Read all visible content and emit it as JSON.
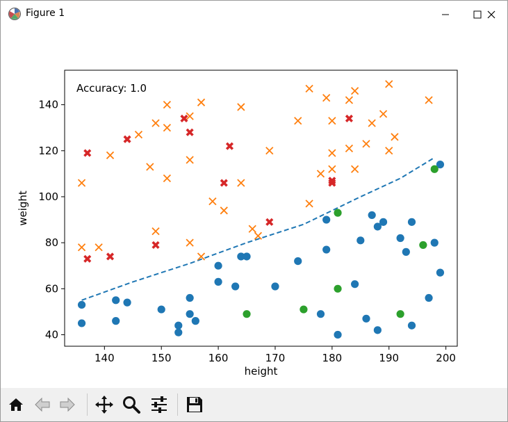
{
  "window": {
    "title": "Figure 1"
  },
  "toolbar": {
    "buttons": [
      {
        "name": "home-button",
        "icon": "home-icon"
      },
      {
        "name": "back-button",
        "icon": "arrow-left-icon"
      },
      {
        "name": "forward-button",
        "icon": "arrow-right-icon"
      },
      {
        "name": "pan-button",
        "icon": "move-icon"
      },
      {
        "name": "zoom-button",
        "icon": "magnifier-icon"
      },
      {
        "name": "configure-subplots-button",
        "icon": "sliders-icon"
      },
      {
        "name": "save-button",
        "icon": "floppy-disk-icon"
      }
    ]
  },
  "chart_data": {
    "type": "scatter",
    "xlabel": "height",
    "ylabel": "weight",
    "annotation": "Accuracy: 1.0",
    "xlim": [
      133,
      202
    ],
    "ylim": [
      35,
      155
    ],
    "xticks": [
      140,
      150,
      160,
      170,
      180,
      190,
      200
    ],
    "yticks": [
      40,
      60,
      80,
      100,
      120,
      140
    ],
    "grid": false,
    "colors": {
      "blue": "#1f77b4",
      "orange": "#ff7f0e",
      "green": "#2ca02c",
      "red": "#d62728"
    },
    "series": [
      {
        "marker": "circle",
        "color": "#1f77b4",
        "points": [
          [
            136,
            53
          ],
          [
            136,
            45
          ],
          [
            142,
            55
          ],
          [
            142,
            46
          ],
          [
            144,
            54
          ],
          [
            150,
            51
          ],
          [
            153,
            44
          ],
          [
            153,
            41
          ],
          [
            155,
            56
          ],
          [
            155,
            49
          ],
          [
            156,
            46
          ],
          [
            160,
            70
          ],
          [
            160,
            63
          ],
          [
            163,
            61
          ],
          [
            164,
            74
          ],
          [
            165,
            74
          ],
          [
            170,
            61
          ],
          [
            174,
            72
          ],
          [
            178,
            49
          ],
          [
            179,
            90
          ],
          [
            179,
            77
          ],
          [
            181,
            40
          ],
          [
            184,
            62
          ],
          [
            185,
            81
          ],
          [
            186,
            47
          ],
          [
            187,
            92
          ],
          [
            188,
            87
          ],
          [
            188,
            42
          ],
          [
            189,
            89
          ],
          [
            192,
            82
          ],
          [
            193,
            76
          ],
          [
            194,
            89
          ],
          [
            194,
            44
          ],
          [
            197,
            56
          ],
          [
            198,
            80
          ],
          [
            199,
            114
          ],
          [
            199,
            67
          ]
        ]
      },
      {
        "marker": "x",
        "color": "#ff7f0e",
        "points": [
          [
            136,
            106
          ],
          [
            136,
            78
          ],
          [
            139,
            78
          ],
          [
            141,
            118
          ],
          [
            146,
            127
          ],
          [
            148,
            113
          ],
          [
            149,
            132
          ],
          [
            149,
            85
          ],
          [
            151,
            140
          ],
          [
            151,
            130
          ],
          [
            151,
            108
          ],
          [
            155,
            135
          ],
          [
            155,
            116
          ],
          [
            155,
            80
          ],
          [
            157,
            141
          ],
          [
            157,
            74
          ],
          [
            159,
            98
          ],
          [
            161,
            94
          ],
          [
            164,
            139
          ],
          [
            164,
            106
          ],
          [
            166,
            86
          ],
          [
            167,
            83
          ],
          [
            169,
            120
          ],
          [
            174,
            133
          ],
          [
            176,
            147
          ],
          [
            176,
            97
          ],
          [
            178,
            110
          ],
          [
            179,
            143
          ],
          [
            180,
            133
          ],
          [
            180,
            119
          ],
          [
            180,
            112
          ],
          [
            183,
            142
          ],
          [
            183,
            121
          ],
          [
            184,
            146
          ],
          [
            184,
            112
          ],
          [
            186,
            123
          ],
          [
            187,
            132
          ],
          [
            189,
            136
          ],
          [
            190,
            149
          ],
          [
            190,
            120
          ],
          [
            191,
            126
          ],
          [
            197,
            142
          ]
        ]
      },
      {
        "marker": "circle",
        "color": "#2ca02c",
        "points": [
          [
            165,
            49
          ],
          [
            175,
            51
          ],
          [
            181,
            93
          ],
          [
            181,
            60
          ],
          [
            192,
            49
          ],
          [
            196,
            79
          ],
          [
            198,
            112
          ]
        ]
      },
      {
        "marker": "X",
        "color": "#d62728",
        "points": [
          [
            137,
            119
          ],
          [
            137,
            73
          ],
          [
            141,
            74
          ],
          [
            144,
            125
          ],
          [
            149,
            79
          ],
          [
            154,
            134
          ],
          [
            155,
            128
          ],
          [
            161,
            106
          ],
          [
            162,
            122
          ],
          [
            169,
            89
          ],
          [
            180,
            107
          ],
          [
            180,
            106
          ],
          [
            183,
            134
          ]
        ]
      },
      {
        "marker": "dashed-line",
        "color": "#1f77b4",
        "points": [
          [
            136,
            55
          ],
          [
            145,
            63
          ],
          [
            155,
            71
          ],
          [
            165,
            80
          ],
          [
            175,
            88
          ],
          [
            185,
            100
          ],
          [
            192,
            108
          ],
          [
            198,
            117
          ]
        ]
      }
    ]
  }
}
